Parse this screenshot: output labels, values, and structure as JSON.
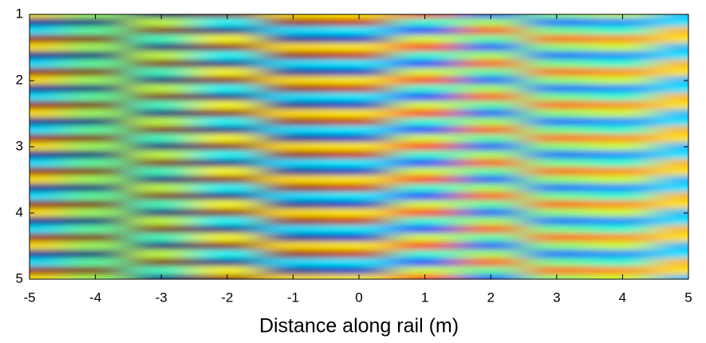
{
  "chart_data": {
    "type": "heatmap",
    "x_label": "Distance along rail (m)",
    "colormap": "jet",
    "zlim": [
      -1,
      1
    ],
    "xlim": [
      -5,
      5
    ],
    "xticks": [
      -5,
      -4,
      -3,
      -2,
      -1,
      0,
      1,
      2,
      3,
      4,
      5
    ],
    "ylim": [
      1,
      5
    ],
    "y_inverted": true,
    "yticks": [
      1,
      2,
      3,
      4,
      5
    ],
    "x": [
      -5,
      -4,
      -3,
      -2,
      -1,
      0,
      1,
      2,
      3,
      4,
      5
    ],
    "y": [
      1,
      1.125,
      1.25,
      1.375,
      1.5,
      1.625,
      1.75,
      1.875,
      2,
      2.125,
      2.25,
      2.375,
      2.5,
      2.625,
      2.75,
      2.875,
      3,
      3.125,
      3.25,
      3.375,
      3.5,
      3.625,
      3.75,
      3.875,
      4,
      4.125,
      4.25,
      4.375,
      4.5,
      4.625,
      4.75,
      4.875,
      5
    ],
    "z": [
      [
        0.31,
        0.06,
        -0.99,
        0.97,
        0.31,
        0.28,
        0.68,
        -0.59,
        0.03,
        0.15,
        -0.4
      ],
      [
        -0.95,
        -1,
        0.13,
        -0.25,
        0.95,
        0.86,
        -0.17,
        0.08,
        -0.55,
        -0.48,
        -0.3
      ],
      [
        -0.31,
        -0.06,
        0.99,
        -0.97,
        -0.31,
        -0.28,
        -0.68,
        0.59,
        -0.03,
        -0.15,
        0.4
      ],
      [
        0.95,
        1,
        -0.13,
        0.25,
        -0.95,
        -0.86,
        0.17,
        -0.08,
        0.55,
        0.48,
        0.3
      ],
      [
        0.31,
        0.06,
        -0.99,
        0.97,
        0.31,
        0.28,
        0.68,
        -0.59,
        0.03,
        0.15,
        -0.4
      ],
      [
        -0.95,
        -1,
        0.13,
        -0.25,
        0.95,
        0.86,
        -0.17,
        0.08,
        -0.55,
        -0.48,
        -0.3
      ],
      [
        -0.31,
        -0.06,
        0.99,
        -0.97,
        -0.31,
        -0.28,
        -0.68,
        0.59,
        -0.03,
        -0.15,
        0.4
      ],
      [
        0.95,
        1,
        -0.13,
        0.25,
        -0.95,
        -0.86,
        0.17,
        -0.08,
        0.55,
        0.48,
        0.3
      ],
      [
        0.31,
        0.06,
        -0.99,
        0.97,
        0.31,
        0.28,
        0.68,
        -0.59,
        0.03,
        0.15,
        -0.4
      ],
      [
        -0.95,
        -1,
        0.13,
        -0.25,
        0.95,
        0.86,
        -0.17,
        0.08,
        -0.55,
        -0.48,
        -0.3
      ],
      [
        -0.31,
        -0.06,
        0.99,
        -0.97,
        -0.31,
        -0.28,
        -0.68,
        0.59,
        -0.03,
        -0.15,
        0.4
      ],
      [
        0.95,
        1,
        -0.13,
        0.25,
        -0.95,
        -0.86,
        0.17,
        -0.08,
        0.55,
        0.48,
        0.3
      ],
      [
        0.31,
        0.06,
        -0.99,
        0.97,
        0.31,
        0.28,
        0.68,
        -0.59,
        0.03,
        0.15,
        -0.4
      ],
      [
        -0.95,
        -1,
        0.13,
        -0.25,
        0.95,
        0.86,
        -0.17,
        0.08,
        -0.55,
        -0.48,
        -0.3
      ],
      [
        -0.31,
        -0.06,
        0.99,
        -0.97,
        -0.31,
        -0.28,
        -0.68,
        0.59,
        -0.03,
        -0.15,
        0.4
      ],
      [
        0.95,
        1,
        -0.13,
        0.25,
        -0.95,
        -0.86,
        0.17,
        -0.08,
        0.55,
        0.48,
        0.3
      ],
      [
        0.31,
        0.06,
        -0.99,
        0.97,
        0.31,
        0.28,
        0.68,
        -0.59,
        0.03,
        0.15,
        -0.4
      ],
      [
        -0.95,
        -1,
        0.13,
        -0.25,
        0.95,
        0.86,
        -0.17,
        0.08,
        -0.55,
        -0.48,
        -0.3
      ],
      [
        -0.31,
        -0.06,
        0.99,
        -0.97,
        -0.31,
        -0.28,
        -0.68,
        0.59,
        -0.03,
        -0.15,
        0.4
      ],
      [
        0.95,
        1,
        -0.13,
        0.25,
        -0.95,
        -0.86,
        0.17,
        -0.08,
        0.55,
        0.48,
        0.3
      ],
      [
        0.31,
        0.06,
        -0.99,
        0.97,
        0.31,
        0.28,
        0.68,
        -0.59,
        0.03,
        0.15,
        -0.4
      ],
      [
        -0.95,
        -1,
        0.13,
        -0.25,
        0.95,
        0.86,
        -0.17,
        0.08,
        -0.55,
        -0.48,
        -0.3
      ],
      [
        -0.31,
        -0.06,
        0.99,
        -0.97,
        -0.31,
        -0.28,
        -0.68,
        0.59,
        -0.03,
        -0.15,
        0.4
      ],
      [
        0.95,
        1,
        -0.13,
        0.25,
        -0.95,
        -0.86,
        0.17,
        -0.08,
        0.55,
        0.48,
        0.3
      ],
      [
        0.31,
        0.06,
        -0.99,
        0.97,
        0.31,
        0.28,
        0.68,
        -0.59,
        0.03,
        0.15,
        -0.4
      ],
      [
        -0.95,
        -1,
        0.13,
        -0.25,
        0.95,
        0.86,
        -0.17,
        0.08,
        -0.55,
        -0.48,
        -0.3
      ],
      [
        -0.31,
        -0.06,
        0.99,
        -0.97,
        -0.31,
        -0.28,
        -0.68,
        0.59,
        -0.03,
        -0.15,
        0.4
      ],
      [
        0.95,
        1,
        -0.13,
        0.25,
        -0.95,
        -0.86,
        0.17,
        -0.08,
        0.55,
        0.48,
        0.3
      ],
      [
        0.31,
        0.06,
        -0.99,
        0.97,
        0.31,
        0.28,
        0.68,
        -0.59,
        0.03,
        0.15,
        -0.4
      ],
      [
        -0.95,
        -1,
        0.13,
        -0.25,
        0.95,
        0.86,
        -0.17,
        0.08,
        -0.55,
        -0.48,
        -0.3
      ],
      [
        -0.31,
        -0.06,
        0.99,
        -0.97,
        -0.31,
        -0.28,
        -0.68,
        0.59,
        -0.03,
        -0.15,
        0.4
      ],
      [
        0.95,
        1,
        -0.13,
        0.25,
        -0.95,
        -0.86,
        0.17,
        -0.08,
        0.55,
        0.48,
        0.3
      ],
      [
        0.31,
        0.06,
        -0.99,
        0.97,
        0.31,
        0.28,
        0.68,
        -0.59,
        0.03,
        0.15,
        -0.4
      ]
    ]
  }
}
